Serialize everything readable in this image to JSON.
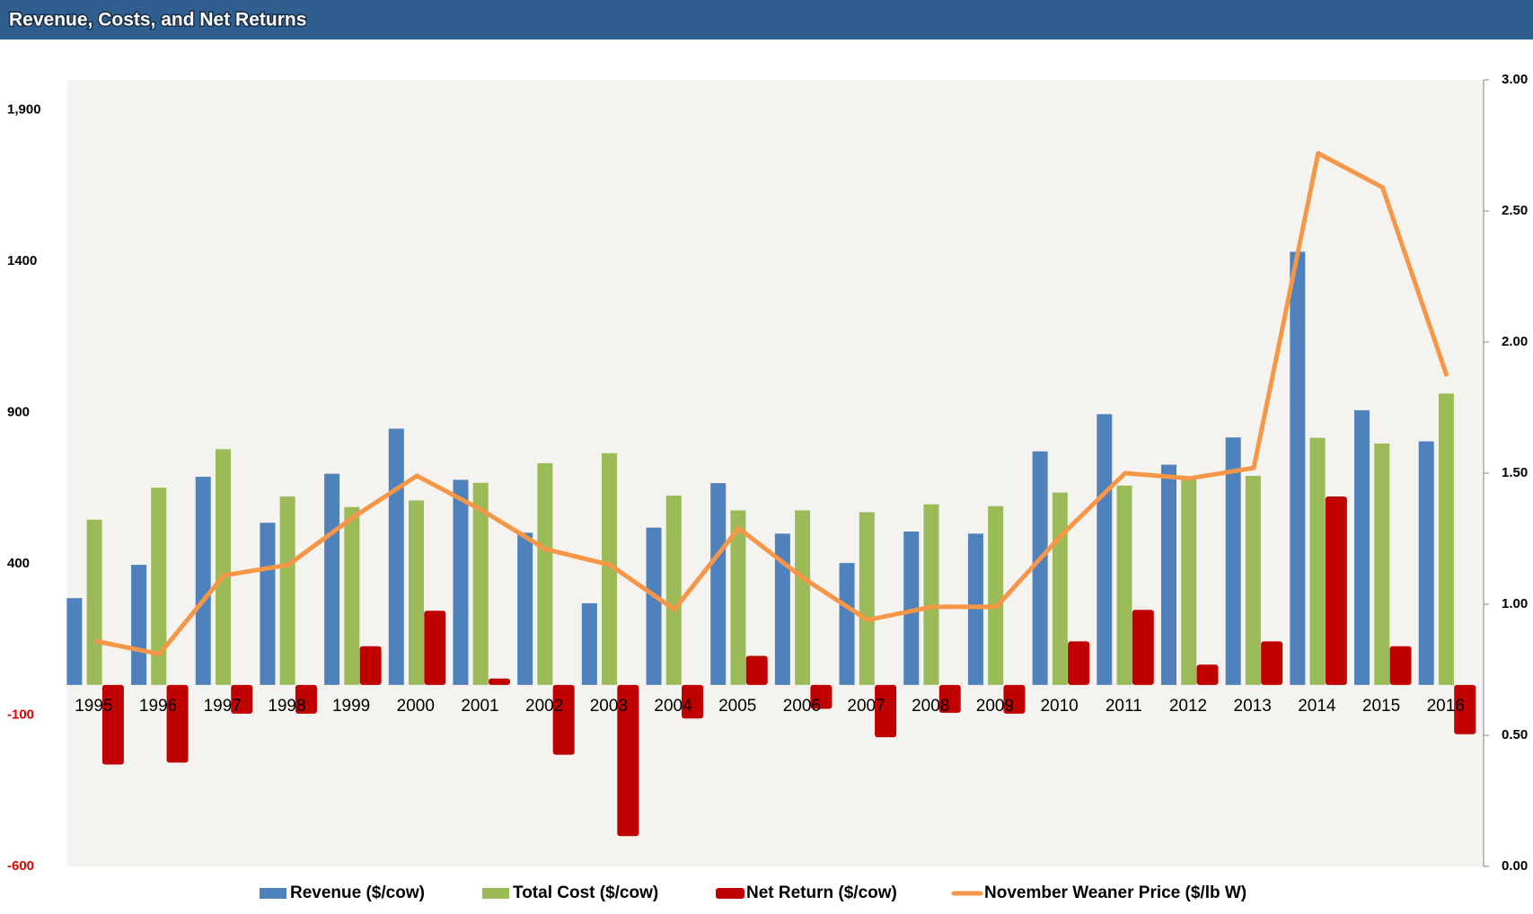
{
  "chart_data": {
    "type": "bar",
    "title": "Revenue, Costs, and Net Returns",
    "categories": [
      "1995",
      "1996",
      "1997",
      "1998",
      "1999",
      "2000",
      "2001",
      "2002",
      "2003",
      "2004",
      "2005",
      "2006",
      "2007",
      "2008",
      "2009",
      "2010",
      "2011",
      "2012",
      "2013",
      "2014",
      "2015",
      "2016"
    ],
    "series": [
      {
        "name": "Revenue ($/cow)",
        "color": "#4f81bd",
        "values": [
          287,
          397,
          688,
          536,
          698,
          847,
          678,
          503,
          270,
          520,
          667,
          500,
          403,
          507,
          500,
          772,
          895,
          728,
          818,
          1432,
          908,
          805
        ]
      },
      {
        "name": "Total Cost ($/cow)",
        "color": "#9bbb59",
        "values": [
          546,
          652,
          779,
          623,
          588,
          610,
          668,
          733,
          766,
          626,
          577,
          577,
          571,
          597,
          591,
          636,
          659,
          681,
          691,
          817,
          798,
          963
        ]
      },
      {
        "name": "Net Return ($/cow)",
        "color": "#c00000",
        "values": [
          -263,
          -257,
          -95,
          -95,
          128,
          245,
          21,
          -231,
          -500,
          -111,
          96,
          -79,
          -173,
          -92,
          -95,
          144,
          248,
          67,
          144,
          623,
          128,
          -163
        ]
      },
      {
        "name": "November Weaner Price ($/lb W)",
        "color": "#f79646",
        "axis": "y2",
        "type": "line",
        "values": [
          0.86,
          0.81,
          1.11,
          1.15,
          1.33,
          1.49,
          1.36,
          1.21,
          1.15,
          0.98,
          1.29,
          1.1,
          0.94,
          0.99,
          0.99,
          1.26,
          1.5,
          1.48,
          1.52,
          2.72,
          2.59,
          1.87
        ]
      }
    ],
    "ylim": [
      -600,
      2000
    ],
    "yticks": [
      -600,
      -100,
      400,
      900,
      1400,
      {
        "value": 1900,
        "label": "1,900"
      }
    ],
    "y2lim": [
      0,
      3
    ],
    "y2ticks": [
      {
        "value": 0,
        "label": "0.00"
      },
      {
        "value": 0.5,
        "label": "0.50"
      },
      {
        "value": 1,
        "label": "1.00"
      },
      {
        "value": 1.5,
        "label": "1.50"
      },
      {
        "value": 2,
        "label": "2.00"
      },
      {
        "value": 2.5,
        "label": "2.50"
      },
      {
        "value": 3,
        "label": "3.00"
      }
    ],
    "grid": false,
    "legend": "bottom"
  }
}
